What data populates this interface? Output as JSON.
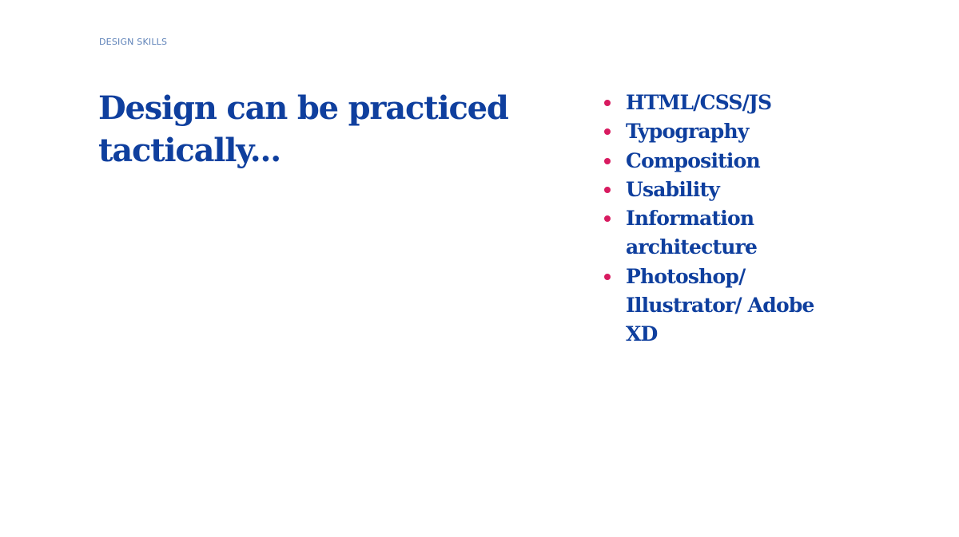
{
  "section_label": "DESIGN SKILLS",
  "headline": "Design can be practiced tactically...",
  "skills": [
    "HTML/CSS/JS",
    "Typography",
    "Composition",
    "Usability",
    "Information architecture",
    "Photoshop/ Illustrator/ Adobe XD"
  ],
  "colors": {
    "heading": "#0f3f9e",
    "eyebrow": "#5e82b8",
    "bullet": "#d81b60",
    "background": "#ffffff"
  }
}
